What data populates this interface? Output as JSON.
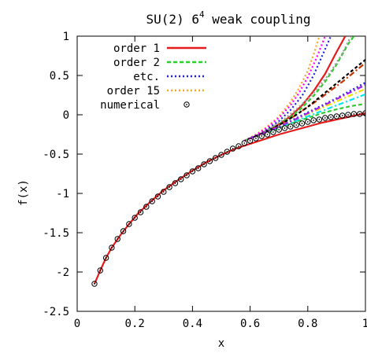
{
  "chart_data": {
    "type": "line",
    "title": "SU(2) 6",
    "title_superscript": "4",
    "title_suffix": " weak coupling",
    "xlabel": "x",
    "ylabel": "f(x)",
    "xlim": [
      0,
      1
    ],
    "ylim": [
      -2.5,
      1
    ],
    "xticks": [
      {
        "value": 0,
        "label": "0"
      },
      {
        "value": 0.2,
        "label": "0.2"
      },
      {
        "value": 0.4,
        "label": "0.4"
      },
      {
        "value": 0.6,
        "label": "0.6"
      },
      {
        "value": 0.8,
        "label": "0.8"
      },
      {
        "value": 1,
        "label": "1"
      }
    ],
    "yticks": [
      {
        "value": 1,
        "label": "1"
      },
      {
        "value": 0.5,
        "label": "0.5"
      },
      {
        "value": 0,
        "label": "0"
      },
      {
        "value": -0.5,
        "label": "-0.5"
      },
      {
        "value": -1,
        "label": "-1"
      },
      {
        "value": -1.5,
        "label": "-1.5"
      },
      {
        "value": -2,
        "label": "-2"
      },
      {
        "value": -2.5,
        "label": "-2.5"
      }
    ],
    "grid": false,
    "legend_position": "top-left",
    "legend": [
      {
        "label": "order 1",
        "color": "#e41a1c",
        "style": "solid"
      },
      {
        "label": "order 2",
        "color": "#2ecc2e",
        "style": "dashed"
      },
      {
        "label": "etc.",
        "color": "#1f1fe0",
        "style": "dotted"
      },
      {
        "label": "order 15",
        "color": "#f5a623",
        "style": "dotted"
      },
      {
        "label": "numerical",
        "color": "#000000",
        "style": "circles"
      }
    ],
    "series": [
      {
        "name": "order 1",
        "color": "#e41a1c",
        "dash": "",
        "width": 2.2,
        "x": [
          0.06,
          0.08,
          0.1,
          0.12,
          0.15,
          0.18,
          0.21,
          0.25,
          0.3,
          0.35,
          0.4,
          0.45,
          0.5,
          0.55,
          0.6,
          0.65,
          0.7,
          0.75,
          0.8,
          0.85,
          0.9,
          0.95,
          1.0
        ],
        "y": [
          -2.15,
          -1.98,
          -1.82,
          -1.69,
          -1.53,
          -1.39,
          -1.26,
          -1.12,
          -0.96,
          -0.83,
          -0.71,
          -0.6,
          -0.51,
          -0.43,
          -0.37,
          -0.31,
          -0.25,
          -0.2,
          -0.15,
          -0.1,
          -0.06,
          -0.02,
          0.02
        ]
      },
      {
        "color": "#e41a1c",
        "dash": "",
        "width": 2.2,
        "x": [
          0.58,
          0.62,
          0.66,
          0.7,
          0.74,
          0.78,
          0.82,
          0.86,
          0.9,
          0.93
        ],
        "y": [
          -0.33,
          -0.27,
          -0.2,
          -0.12,
          -0.02,
          0.12,
          0.3,
          0.52,
          0.8,
          1.0
        ]
      },
      {
        "name": "order 2",
        "color": "#2ecc2e",
        "dash": "5,3",
        "width": 2.2,
        "x": [
          0.58,
          0.62,
          0.66,
          0.7,
          0.74,
          0.78,
          0.82,
          0.86,
          0.9,
          0.94,
          0.96
        ],
        "y": [
          -0.33,
          -0.27,
          -0.2,
          -0.12,
          -0.03,
          0.09,
          0.24,
          0.42,
          0.64,
          0.9,
          1.0
        ]
      },
      {
        "color": "#2ecc2e",
        "dash": "5,3",
        "width": 2.2,
        "x": [
          0.6,
          0.65,
          0.7,
          0.75,
          0.8,
          0.85,
          0.9,
          0.95,
          1.0
        ],
        "y": [
          -0.3,
          -0.24,
          -0.17,
          -0.1,
          -0.04,
          0.02,
          0.07,
          0.11,
          0.14
        ]
      },
      {
        "name": "etc.",
        "color": "#1f1fe0",
        "dash": "2,3",
        "width": 2.2,
        "x": [
          0.58,
          0.62,
          0.66,
          0.7,
          0.74,
          0.78,
          0.82,
          0.85,
          0.88
        ],
        "y": [
          -0.33,
          -0.26,
          -0.18,
          -0.08,
          0.06,
          0.24,
          0.5,
          0.75,
          1.0
        ]
      },
      {
        "color": "#1f1fe0",
        "dash": "2,3",
        "width": 2.2,
        "x": [
          0.6,
          0.65,
          0.7,
          0.75,
          0.8,
          0.85,
          0.9,
          0.95,
          1.0
        ],
        "y": [
          -0.3,
          -0.23,
          -0.15,
          -0.06,
          0.03,
          0.12,
          0.21,
          0.31,
          0.41
        ]
      },
      {
        "name": "order 15",
        "color": "#f5a623",
        "dash": "2,3",
        "width": 2.2,
        "x": [
          0.58,
          0.62,
          0.66,
          0.7,
          0.74,
          0.77,
          0.8,
          0.82,
          0.84
        ],
        "y": [
          -0.33,
          -0.25,
          -0.15,
          -0.02,
          0.16,
          0.34,
          0.56,
          0.76,
          1.0
        ]
      },
      {
        "color": "#ff00ff",
        "dash": "2,3",
        "width": 2.2,
        "x": [
          0.58,
          0.62,
          0.66,
          0.7,
          0.74,
          0.77,
          0.8,
          0.83,
          0.86
        ],
        "y": [
          -0.33,
          -0.26,
          -0.16,
          -0.04,
          0.12,
          0.28,
          0.48,
          0.72,
          1.0
        ]
      },
      {
        "color": "#00e5ee",
        "dash": "7,3,2,3",
        "width": 2.2,
        "x": [
          0.6,
          0.65,
          0.7,
          0.75,
          0.8,
          0.85,
          0.9,
          0.95,
          1.0
        ],
        "y": [
          -0.3,
          -0.23,
          -0.16,
          -0.09,
          -0.02,
          0.05,
          0.12,
          0.19,
          0.26
        ]
      },
      {
        "color": "#f0e000",
        "dash": "7,3,2,3",
        "width": 2.2,
        "x": [
          0.6,
          0.65,
          0.7,
          0.75,
          0.8,
          0.85,
          0.9,
          0.95,
          1.0
        ],
        "y": [
          -0.3,
          -0.23,
          -0.15,
          -0.07,
          0.01,
          0.09,
          0.17,
          0.25,
          0.33
        ]
      },
      {
        "color": "#c83200",
        "dash": "7,3,2,3",
        "width": 2.2,
        "x": [
          0.6,
          0.64,
          0.68,
          0.72,
          0.76,
          0.8,
          0.84,
          0.88,
          0.92,
          0.96,
          1.0
        ],
        "y": [
          -0.3,
          -0.24,
          -0.17,
          -0.09,
          0.0,
          0.1,
          0.2,
          0.31,
          0.42,
          0.54,
          0.66
        ]
      },
      {
        "color": "#000000",
        "dash": "4,3",
        "width": 2.2,
        "x": [
          0.6,
          0.64,
          0.68,
          0.72,
          0.76,
          0.8,
          0.84,
          0.88,
          0.92,
          0.96,
          1.0
        ],
        "y": [
          -0.3,
          -0.24,
          -0.17,
          -0.09,
          0.0,
          0.1,
          0.22,
          0.34,
          0.46,
          0.58,
          0.7
        ]
      },
      {
        "color": "#999999",
        "dash": "2,3",
        "width": 2.2,
        "x": [
          0.6,
          0.64,
          0.68,
          0.72,
          0.76,
          0.8,
          0.84,
          0.88,
          0.92,
          0.95
        ],
        "y": [
          -0.3,
          -0.23,
          -0.15,
          -0.05,
          0.07,
          0.2,
          0.36,
          0.55,
          0.78,
          1.0
        ]
      },
      {
        "color": "#a020f0",
        "dash": "7,3,2,3",
        "width": 2.2,
        "x": [
          0.6,
          0.65,
          0.7,
          0.75,
          0.8,
          0.85,
          0.9,
          0.95,
          1.0
        ],
        "y": [
          -0.3,
          -0.23,
          -0.15,
          -0.07,
          0.02,
          0.11,
          0.2,
          0.29,
          0.38
        ]
      }
    ],
    "numerical": {
      "name": "numerical",
      "x": [
        0.06,
        0.08,
        0.1,
        0.12,
        0.14,
        0.16,
        0.18,
        0.2,
        0.22,
        0.24,
        0.26,
        0.28,
        0.3,
        0.32,
        0.34,
        0.36,
        0.38,
        0.4,
        0.42,
        0.44,
        0.46,
        0.48,
        0.5,
        0.52,
        0.54,
        0.56,
        0.58,
        0.6,
        0.62,
        0.64,
        0.66,
        0.68,
        0.7,
        0.72,
        0.74,
        0.76,
        0.78,
        0.8,
        0.82,
        0.84,
        0.86,
        0.88,
        0.9,
        0.92,
        0.94,
        0.96,
        0.98,
        1.0
      ],
      "y": [
        -2.15,
        -1.98,
        -1.82,
        -1.69,
        -1.58,
        -1.48,
        -1.39,
        -1.31,
        -1.24,
        -1.17,
        -1.1,
        -1.04,
        -0.98,
        -0.92,
        -0.87,
        -0.82,
        -0.77,
        -0.72,
        -0.68,
        -0.63,
        -0.59,
        -0.55,
        -0.51,
        -0.47,
        -0.43,
        -0.4,
        -0.36,
        -0.33,
        -0.3,
        -0.27,
        -0.25,
        -0.22,
        -0.19,
        -0.17,
        -0.15,
        -0.13,
        -0.11,
        -0.09,
        -0.07,
        -0.06,
        -0.04,
        -0.03,
        -0.02,
        -0.01,
        0.0,
        0.01,
        0.01,
        0.02
      ]
    }
  }
}
